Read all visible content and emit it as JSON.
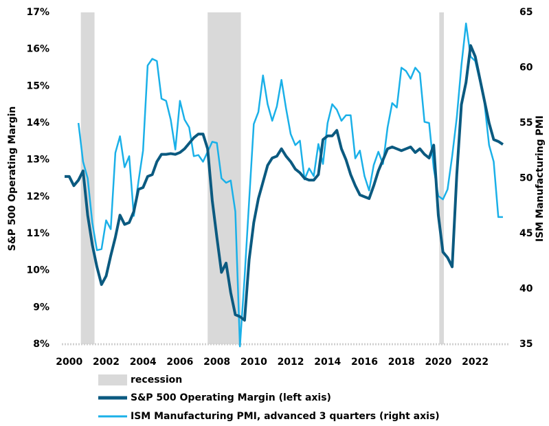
{
  "chart_data": {
    "type": "line",
    "x": [
      1999.75,
      2000,
      2000.25,
      2000.5,
      2000.75,
      2001,
      2001.25,
      2001.5,
      2001.75,
      2002,
      2002.25,
      2002.5,
      2002.75,
      2003,
      2003.25,
      2003.5,
      2003.75,
      2004,
      2004.25,
      2004.5,
      2004.75,
      2005,
      2005.25,
      2005.5,
      2005.75,
      2006,
      2006.25,
      2006.5,
      2006.75,
      2007,
      2007.25,
      2007.5,
      2007.75,
      2008,
      2008.25,
      2008.5,
      2008.75,
      2009,
      2009.25,
      2009.5,
      2009.75,
      2010,
      2010.25,
      2010.5,
      2010.75,
      2011,
      2011.25,
      2011.5,
      2011.75,
      2012,
      2012.25,
      2012.5,
      2012.75,
      2013,
      2013.25,
      2013.5,
      2013.75,
      2014,
      2014.25,
      2014.5,
      2014.75,
      2015,
      2015.25,
      2015.5,
      2015.75,
      2016,
      2016.25,
      2016.5,
      2016.75,
      2017,
      2017.25,
      2017.5,
      2017.75,
      2018,
      2018.25,
      2018.5,
      2018.75,
      2019,
      2019.25,
      2019.5,
      2019.75,
      2020,
      2020.25,
      2020.5,
      2020.75,
      2021,
      2021.25,
      2021.5,
      2021.75,
      2022,
      2022.25,
      2022.5,
      2022.75,
      2023,
      2023.25,
      2023.5
    ],
    "series": [
      {
        "name": "S&P 500 Operating Margin (left axis)",
        "color": "#0b5a80",
        "axis": "y",
        "values": [
          12.55,
          12.55,
          12.3,
          12.45,
          12.7,
          11.5,
          10.7,
          10.1,
          9.62,
          9.85,
          10.4,
          10.9,
          11.5,
          11.25,
          11.3,
          11.6,
          12.2,
          12.25,
          12.55,
          12.6,
          12.95,
          13.15,
          13.15,
          13.17,
          13.15,
          13.2,
          13.3,
          13.45,
          13.6,
          13.7,
          13.7,
          13.3,
          11.9,
          10.9,
          9.95,
          10.2,
          9.4,
          8.8,
          8.75,
          8.65,
          10.3,
          11.3,
          11.95,
          12.4,
          12.85,
          13.05,
          13.1,
          13.3,
          13.1,
          12.95,
          12.75,
          12.65,
          12.5,
          12.45,
          12.45,
          12.6,
          13.55,
          13.65,
          13.65,
          13.8,
          13.3,
          13.0,
          12.6,
          12.3,
          12.05,
          12.0,
          11.95,
          12.3,
          12.7,
          13.0,
          13.3,
          13.35,
          13.3,
          13.25,
          13.3,
          13.35,
          13.2,
          13.3,
          13.15,
          13.05,
          13.4,
          11.5,
          10.5,
          10.35,
          10.1,
          12.6,
          14.5,
          15.1,
          16.1,
          15.8,
          15.2,
          14.6,
          14.0,
          13.55,
          13.5,
          13.42
        ]
      },
      {
        "name": "ISM Manufacturing PMI, advanced 3 quarters (right axis)",
        "color": "#1ab0e8",
        "axis": "y2",
        "values": [
          null,
          null,
          null,
          55,
          51.5,
          50,
          46,
          43.5,
          43.6,
          46.2,
          45.4,
          52.3,
          53.8,
          51,
          52,
          46.6,
          49.7,
          52.5,
          60.2,
          60.8,
          60.6,
          57.2,
          57,
          55.3,
          52.6,
          57,
          55.3,
          54.6,
          52,
          52.1,
          51.5,
          52.4,
          53.3,
          53.2,
          50,
          49.6,
          49.8,
          47,
          34.8,
          41,
          48,
          54.9,
          56,
          59.3,
          56.7,
          55.2,
          56.5,
          58.9,
          56.3,
          54,
          53,
          53.4,
          49.9,
          50.9,
          50.2,
          53.1,
          51.3,
          55,
          56.7,
          56.2,
          55.2,
          55.7,
          55.7,
          51.8,
          52.5,
          50.2,
          48.9,
          51.2,
          52.4,
          51.3,
          54.6,
          56.8,
          56.4,
          60,
          59.7,
          59,
          60,
          59.5,
          55.1,
          55,
          50.9,
          48.4,
          48.1,
          49,
          52,
          55.5,
          60.2,
          64,
          61,
          60.6,
          58.8,
          56.8,
          53,
          51.5,
          46.5,
          46.5
        ]
      }
    ],
    "shading": {
      "name": "recession",
      "color": "#d9d9d9",
      "ranges": [
        [
          2000.63,
          2001.37
        ],
        [
          2007.5,
          2009.3
        ],
        [
          2020.05,
          2020.3
        ]
      ]
    },
    "xlim": [
      1999.6,
      2023.8
    ],
    "xticks": [
      2000,
      2002,
      2004,
      2006,
      2008,
      2010,
      2012,
      2014,
      2016,
      2018,
      2020,
      2022
    ],
    "ylabel": "S&P 500 Operating Margin",
    "ylim": [
      8,
      17
    ],
    "yticks": [
      {
        "value": 8,
        "label": "8%"
      },
      {
        "value": 9,
        "label": "9%"
      },
      {
        "value": 10,
        "label": "10%"
      },
      {
        "value": 11,
        "label": "11%"
      },
      {
        "value": 12,
        "label": "12%"
      },
      {
        "value": 13,
        "label": "13%"
      },
      {
        "value": 14,
        "label": "14%"
      },
      {
        "value": 15,
        "label": "15%"
      },
      {
        "value": 16,
        "label": "16%"
      },
      {
        "value": 17,
        "label": "17%"
      }
    ],
    "y2label": "ISM Manufacturing PMI",
    "y2lim": [
      35,
      65
    ],
    "y2ticks": [
      35,
      40,
      45,
      50,
      55,
      60,
      65
    ]
  }
}
